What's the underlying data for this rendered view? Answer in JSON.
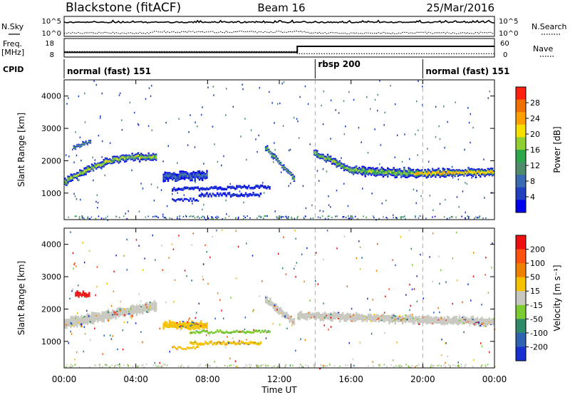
{
  "header": {
    "station": "Blackstone (fitACF)",
    "beam": "Beam 16",
    "date": "25/Mar/2016"
  },
  "nsky_panel": {
    "left_label": "N.Sky",
    "right_label": "N.Search",
    "left_ticks": [
      "10^5",
      "10^0"
    ],
    "right_ticks": [
      "10^5",
      "10^0"
    ]
  },
  "freq_panel": {
    "label_line1": "Freq.",
    "label_line2": "[MHz]",
    "left_ticks": [
      "18",
      "8"
    ],
    "right_label": "Nave",
    "right_ticks": [
      "60",
      "0"
    ],
    "freq_steps": [
      {
        "from": 0.0,
        "to": 13.0,
        "mhz": 10.3
      },
      {
        "from": 13.0,
        "to": 24.0,
        "mhz": 14.5
      }
    ],
    "nave_steps": [
      {
        "from": 0.0,
        "to": 13.0,
        "value": 17
      },
      {
        "from": 13.0,
        "to": 24.0,
        "value": 8
      }
    ]
  },
  "cpid": {
    "label": "CPID",
    "segments": [
      {
        "label": "normal (fast) 151",
        "start": 0.0
      },
      {
        "label": "rbsp 200",
        "start": 14.0
      },
      {
        "label": "normal (fast) 151",
        "start": 20.0
      }
    ],
    "boundaries": [
      14.0,
      20.0
    ]
  },
  "chart_data": [
    {
      "type": "heatmap",
      "name": "power",
      "ylabel": "Slant Range [km]",
      "yticks": [
        1000,
        2000,
        3000,
        4000
      ],
      "ylim": [
        180,
        4500
      ],
      "colorbar_label": "Power [dB]",
      "colorbar_ticks": [
        "28",
        "24",
        "20",
        "16",
        "12",
        "8",
        "4"
      ],
      "colors": [
        "#0000ee",
        "#2040c0",
        "#3a6ab0",
        "#4f8c6e",
        "#2ca84a",
        "#8fd030",
        "#f5e000",
        "#ffa000",
        "#f07000",
        "#ff2010"
      ],
      "echo_bands": [
        {
          "t0": 0.0,
          "t1": 5.2,
          "r0": 1330,
          "r1": 2100,
          "rise": 280,
          "thick": 200,
          "level": 0.7
        },
        {
          "t0": 0.5,
          "t1": 1.5,
          "r0": 2400,
          "r1": 2600,
          "rise": 0,
          "thick": 100,
          "level": 0.45
        },
        {
          "t0": 5.5,
          "t1": 8.0,
          "r0": 1500,
          "r1": 1550,
          "rise": 0,
          "thick": 250,
          "level": 0.25
        },
        {
          "t0": 6.0,
          "t1": 8.5,
          "r0": 1130,
          "r1": 1150,
          "rise": 0,
          "thick": 80,
          "level": 0.12
        },
        {
          "t0": 8.5,
          "t1": 11.5,
          "r0": 1150,
          "r1": 1200,
          "rise": 0,
          "thick": 80,
          "level": 0.1
        },
        {
          "t0": 7.5,
          "t1": 11.0,
          "r0": 950,
          "r1": 950,
          "rise": 0,
          "thick": 80,
          "level": 0.1
        },
        {
          "t0": 6.0,
          "t1": 7.5,
          "r0": 800,
          "r1": 800,
          "rise": 0,
          "thick": 50,
          "level": 0.1
        },
        {
          "t0": 11.2,
          "t1": 12.9,
          "r0": 2400,
          "r1": 1450,
          "rise": 0,
          "thick": 150,
          "level": 0.6
        },
        {
          "t0": 13.9,
          "t1": 16.0,
          "r0": 2250,
          "r1": 1750,
          "rise": 0,
          "thick": 200,
          "level": 0.65
        },
        {
          "t0": 16.0,
          "t1": 19.5,
          "r0": 1700,
          "r1": 1600,
          "rise": 0,
          "thick": 250,
          "level": 0.65
        },
        {
          "t0": 19.5,
          "t1": 24.0,
          "r0": 1600,
          "r1": 1650,
          "rise": 0,
          "thick": 220,
          "level": 0.9
        }
      ]
    },
    {
      "type": "heatmap",
      "name": "velocity",
      "ylabel": "Slant Range [km]",
      "yticks": [
        1000,
        2000,
        3000,
        4000
      ],
      "ylim": [
        180,
        4500
      ],
      "colorbar_label": "Velocity [m s⁻¹]",
      "colorbar_ticks": [
        "200",
        "100",
        "50",
        "15",
        "-15",
        "-50",
        "-100",
        "-200"
      ],
      "colors": [
        "#1830d0",
        "#2f62b0",
        "#2f8a6a",
        "#7acc30",
        "#c8c8c0",
        "#f5c000",
        "#f08000",
        "#ff5010",
        "#ee1010"
      ],
      "echo_bands": [
        {
          "t0": 0.0,
          "t1": 5.2,
          "r0": 1550,
          "r1": 2100,
          "rise": 0,
          "thick": 300,
          "color": "#c8c8c0"
        },
        {
          "t0": 0.6,
          "t1": 1.4,
          "r0": 2450,
          "r1": 2450,
          "rise": 0,
          "thick": 150,
          "color": "#ee1010"
        },
        {
          "t0": 5.5,
          "t1": 8.0,
          "r0": 1500,
          "r1": 1500,
          "rise": 0,
          "thick": 200,
          "color": "#f5c000"
        },
        {
          "t0": 7.0,
          "t1": 11.5,
          "r0": 1300,
          "r1": 1300,
          "rise": 0,
          "thick": 60,
          "color": "#7acc30"
        },
        {
          "t0": 7.0,
          "t1": 11.0,
          "r0": 950,
          "r1": 950,
          "rise": 0,
          "thick": 80,
          "color": "#f5c000"
        },
        {
          "t0": 6.0,
          "t1": 7.5,
          "r0": 800,
          "r1": 800,
          "rise": 0,
          "thick": 50,
          "color": "#f5c000"
        },
        {
          "t0": 11.2,
          "t1": 12.9,
          "r0": 2300,
          "r1": 1600,
          "rise": 0,
          "thick": 200,
          "color": "#c8c8c0"
        },
        {
          "t0": 13.0,
          "t1": 24.0,
          "r0": 1800,
          "r1": 1600,
          "rise": 0,
          "thick": 220,
          "color": "#c8c8c0"
        }
      ]
    }
  ],
  "xaxis": {
    "label": "Time UT",
    "ticks": [
      "00:00",
      "04:00",
      "08:00",
      "12:00",
      "16:00",
      "20:00",
      "00:00"
    ],
    "tick_hours": [
      0,
      4,
      8,
      12,
      16,
      20,
      24
    ]
  }
}
